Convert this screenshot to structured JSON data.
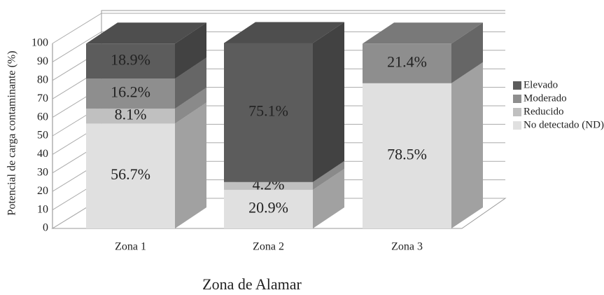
{
  "chart_data": {
    "type": "bar3d_stacked",
    "ylabel": "Potencial de carga contaminante (%)",
    "xlabel": "Zona de Alamar",
    "categories": [
      "Zona 1",
      "Zona 2",
      "Zona 3"
    ],
    "series": [
      {
        "name": "No detectado (ND)",
        "color": "#e0e0e0",
        "values": [
          56.7,
          20.9,
          78.5
        ],
        "value_labels": [
          "56.7%",
          "20.9%",
          "78.5%"
        ]
      },
      {
        "name": "Reducido",
        "color": "#c0c0c0",
        "values": [
          8.1,
          4.2,
          null
        ],
        "value_labels": [
          "8.1%",
          "4.2%",
          null
        ]
      },
      {
        "name": "Moderado",
        "color": "#8e8e8e",
        "values": [
          16.2,
          null,
          21.4
        ],
        "value_labels": [
          "16.2%",
          null,
          "21.4%"
        ]
      },
      {
        "name": "Elevado",
        "color": "#5c5c5c",
        "values": [
          18.9,
          75.1,
          null
        ],
        "value_labels": [
          "18.9%",
          "75.1%",
          null
        ]
      }
    ],
    "ylim": [
      0,
      100
    ],
    "yticks": [
      0,
      10,
      20,
      30,
      40,
      50,
      60,
      70,
      80,
      90,
      100
    ],
    "grid": true,
    "legend": "right"
  }
}
